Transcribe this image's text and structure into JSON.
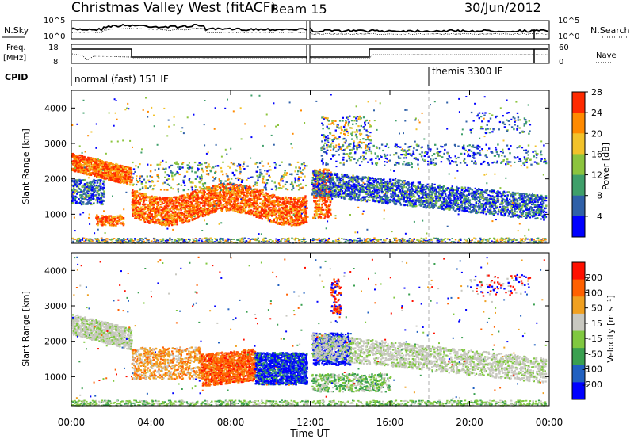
{
  "header": {
    "title": "Christmas Valley West (fitACF)",
    "beam": "Beam 15",
    "date": "30/Jun/2012"
  },
  "panel_labels": {
    "nsky": "N.Sky",
    "nsky_ticks": [
      "10^5",
      "10^0"
    ],
    "nsearch": "N.Search",
    "nsearch_ticks": [
      "10^5",
      "10^0"
    ],
    "freq_label_1": "Freq.",
    "freq_label_2": "[MHz]",
    "freq_ticks": [
      "18",
      "8"
    ],
    "nave": "Nave",
    "nave_ticks": [
      "60",
      "0"
    ],
    "cpid": "CPID",
    "cpid_1": "normal (fast) 151 IF",
    "cpid_2": "themis 3300 IF"
  },
  "chart_data": [
    {
      "type": "heatmap",
      "name": "power",
      "ylabel": "Slant Range [km]",
      "yticks": [
        "1000",
        "2000",
        "3000",
        "4000"
      ],
      "ylim": [
        180,
        4500
      ],
      "colorbar_label": "Power [dB]",
      "colorbar_ticks": [
        "4",
        "8",
        "12",
        "16",
        "20",
        "24",
        "28"
      ],
      "colors": [
        "#0000ff",
        "#2f60a8",
        "#3f9f6a",
        "#8cc43e",
        "#f2c22a",
        "#ff8a00",
        "#ff2a00"
      ]
    },
    {
      "type": "heatmap",
      "name": "velocity",
      "ylabel": "Slant Range [km]",
      "yticks": [
        "1000",
        "2000",
        "3000",
        "4000"
      ],
      "ylim": [
        180,
        4500
      ],
      "colorbar_label": "Velocity [m s⁻¹]",
      "colorbar_ticks": [
        "200",
        "100",
        "50",
        "15",
        "-15",
        "-50",
        "-100",
        "-200"
      ],
      "colors": [
        "#0000ff",
        "#2060c0",
        "#3aa050",
        "#80c840",
        "#c8c8c0",
        "#f0a020",
        "#ff6000",
        "#ff1000"
      ]
    }
  ],
  "xaxis": {
    "label": "Time UT",
    "ticks": [
      "00:00",
      "04:00",
      "08:00",
      "12:00",
      "16:00",
      "20:00",
      "00:00"
    ]
  }
}
